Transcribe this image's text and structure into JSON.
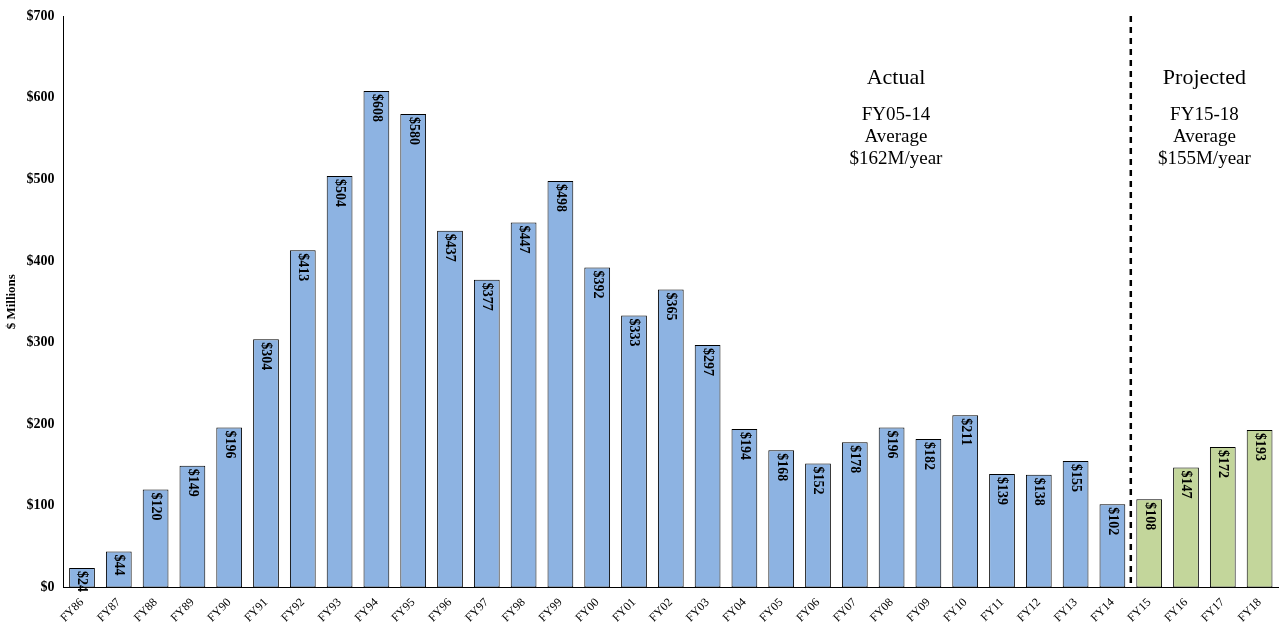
{
  "chart_data": {
    "type": "bar",
    "ylabel": "$ Millions",
    "categories": [
      "FY86",
      "FY87",
      "FY88",
      "FY89",
      "FY90",
      "FY91",
      "FY92",
      "FY93",
      "FY94",
      "FY95",
      "FY96",
      "FY97",
      "FY98",
      "FY99",
      "FY00",
      "FY01",
      "FY02",
      "FY03",
      "FY04",
      "FY05",
      "FY06",
      "FY07",
      "FY08",
      "FY09",
      "FY10",
      "FY11",
      "FY12",
      "FY13",
      "FY14",
      "FY15",
      "FY16",
      "FY17",
      "FY18"
    ],
    "values": [
      24,
      44,
      120,
      149,
      196,
      304,
      413,
      504,
      608,
      580,
      437,
      377,
      447,
      498,
      392,
      333,
      365,
      297,
      194,
      168,
      152,
      178,
      196,
      182,
      211,
      139,
      138,
      155,
      102,
      108,
      147,
      172,
      193
    ],
    "colors": [
      "#8db3e2",
      "#8db3e2",
      "#8db3e2",
      "#8db3e2",
      "#8db3e2",
      "#8db3e2",
      "#8db3e2",
      "#8db3e2",
      "#8db3e2",
      "#8db3e2",
      "#8db3e2",
      "#8db3e2",
      "#8db3e2",
      "#8db3e2",
      "#8db3e2",
      "#8db3e2",
      "#8db3e2",
      "#8db3e2",
      "#8db3e2",
      "#8db3e2",
      "#8db3e2",
      "#8db3e2",
      "#8db3e2",
      "#8db3e2",
      "#8db3e2",
      "#8db3e2",
      "#8db3e2",
      "#8db3e2",
      "#8db3e2",
      "#c3d69b",
      "#c3d69b",
      "#c3d69b",
      "#c3d69b"
    ],
    "value_labels": [
      "$24",
      "$44",
      "$120",
      "$149",
      "$196",
      "$304",
      "$413",
      "$504",
      "$608",
      "$580",
      "$437",
      "$377",
      "$447",
      "$498",
      "$392",
      "$333",
      "$365",
      "$297",
      "$194",
      "$168",
      "$152",
      "$178",
      "$196",
      "$182",
      "$211",
      "$139",
      "$138",
      "$155",
      "$102",
      "$108",
      "$147",
      "$172",
      "$193"
    ],
    "ylim": [
      0,
      700
    ],
    "yticks": [
      {
        "value": 0,
        "label": "$0"
      },
      {
        "value": 100,
        "label": "$100"
      },
      {
        "value": 200,
        "label": "$200"
      },
      {
        "value": 300,
        "label": "$300"
      },
      {
        "value": 400,
        "label": "$400"
      },
      {
        "value": 500,
        "label": "$500"
      },
      {
        "value": 600,
        "label": "$600"
      },
      {
        "value": 700,
        "label": "$700"
      }
    ],
    "annotations": [
      "Actual",
      "FY05-14\nAverage\n$162M/year",
      "Projected",
      "FY15-18\nAverage\n$155M/year"
    ],
    "grid": false,
    "legend": false
  }
}
